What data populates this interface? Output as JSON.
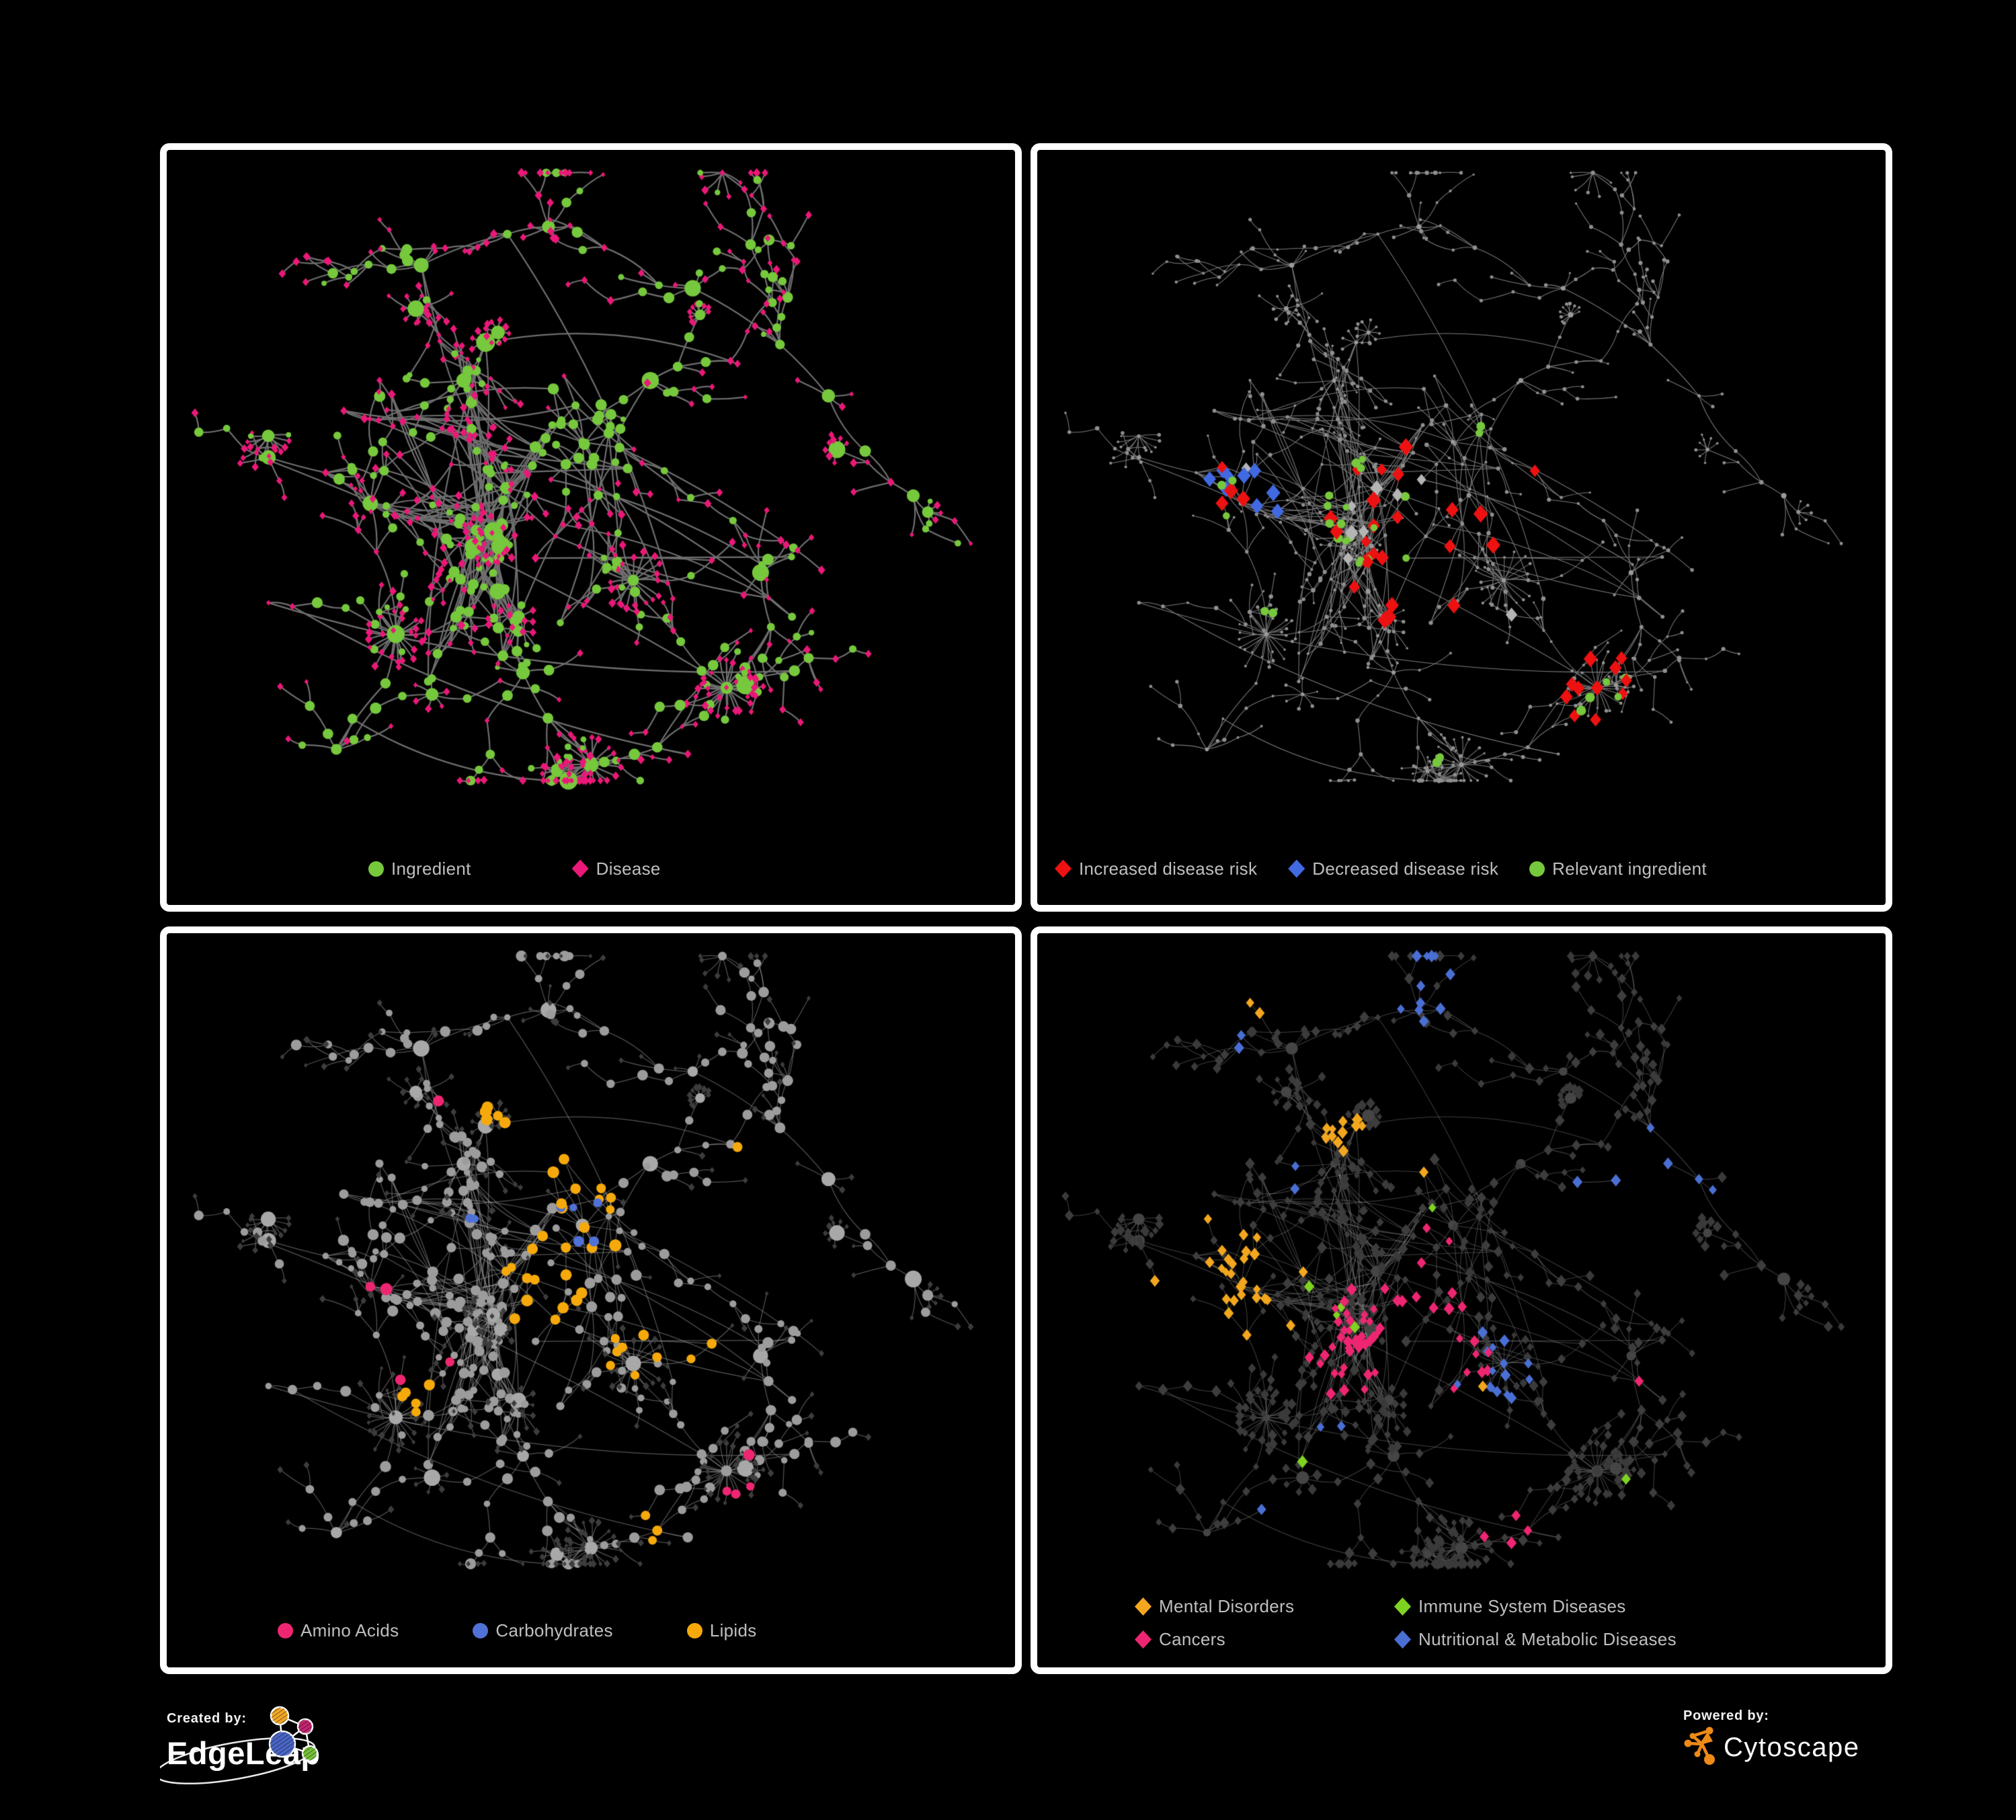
{
  "page": {
    "background": "#000000",
    "panel_border_color": "#ffffff",
    "legend_text_color": "#bfbfbf"
  },
  "footer": {
    "created_by_label": "Created by:",
    "edgeleap_brand": "EdgeLeap",
    "powered_by_label": "Powered by:",
    "cytoscape_brand": "Cytoscape",
    "cytoscape_orange": "#ee8a18",
    "edgeleap_node_colors": {
      "orange": "#f0a727",
      "magenta": "#c2256f",
      "blue": "#4a66c6",
      "green": "#76c23a"
    }
  },
  "network_base": {
    "seed": 7,
    "nodes": 600,
    "fans": 30,
    "cross": 110,
    "longlinks": 20,
    "step": [
      20,
      58
    ],
    "hubs": [
      [
        0.4,
        0.44,
        3.2
      ],
      [
        0.24,
        0.46,
        2.4
      ],
      [
        0.49,
        0.38,
        1.6
      ],
      [
        0.55,
        0.56,
        1.1
      ],
      [
        0.3,
        0.15,
        1.2
      ],
      [
        0.45,
        0.1,
        1.0
      ],
      [
        0.62,
        0.18,
        0.8
      ],
      [
        0.78,
        0.32,
        1.2
      ],
      [
        0.88,
        0.45,
        0.6
      ],
      [
        0.66,
        0.7,
        1.0
      ],
      [
        0.5,
        0.8,
        0.8
      ],
      [
        0.27,
        0.63,
        1.0
      ],
      [
        0.2,
        0.78,
        0.7
      ],
      [
        0.12,
        0.4,
        0.6
      ],
      [
        0.35,
        0.3,
        1.4
      ],
      [
        0.57,
        0.3,
        0.9
      ],
      [
        0.7,
        0.55,
        0.7
      ],
      [
        0.42,
        0.68,
        0.8
      ]
    ],
    "bigfans": [
      [
        0.55,
        0.56
      ],
      [
        0.5,
        0.8
      ],
      [
        0.27,
        0.63
      ],
      [
        0.66,
        0.7
      ]
    ]
  },
  "panels": [
    {
      "name": "ingredient-disease",
      "legend": [
        {
          "label": "Ingredient",
          "shape": "circle",
          "color": "#76c83c"
        },
        {
          "label": "Disease",
          "shape": "diamond",
          "color": "#ea1878"
        }
      ],
      "style": {
        "edge_color": "#6f6f6f",
        "edge_width": 2.2,
        "leaf": [
          [
            "diamond",
            "#ea1878",
            5.2,
            0.86
          ],
          [
            "circle",
            "#76c83c",
            4.8,
            0.14
          ]
        ],
        "mid": [
          [
            "diamond",
            "#ea1878",
            5.4,
            0.52
          ],
          [
            "circle",
            "#76c83c",
            6.4,
            0.48
          ]
        ],
        "hub": [
          [
            "circle",
            "#76c83c",
            10.5,
            1
          ]
        ]
      },
      "classes": [
        {
          "name": "relevant-ingredient-cluster",
          "shape": "circle",
          "color": "#76c83c",
          "size": 7,
          "count": 30,
          "foci": [
            [
              0.49,
              0.38,
              0.05
            ]
          ]
        }
      ]
    },
    {
      "name": "disease-risk",
      "legend": [
        {
          "label": "Increased disease risk",
          "shape": "diamond",
          "color": "#ee1111"
        },
        {
          "label": "Decreased disease risk",
          "shape": "diamond",
          "color": "#4169e1"
        },
        {
          "label": "Relevant ingredient",
          "shape": "circle",
          "color": "#76c83c"
        }
      ],
      "style": {
        "edge_color": "#7b7b7b",
        "edge_width": 1.05,
        "leaf": [
          [
            "circle",
            "#8f8f8f",
            2.1,
            1
          ]
        ],
        "mid": [
          [
            "circle",
            "#8f8f8f",
            2.5,
            1
          ]
        ],
        "hub": [
          [
            "circle",
            "#9a9a9a",
            3.1,
            1
          ]
        ]
      },
      "classes": [
        {
          "name": "increased-disease-risk",
          "shape": "diamond",
          "color": "#ee1111",
          "size": 11,
          "count": 40,
          "foci": [
            [
              0.42,
              0.47,
              0.08
            ],
            [
              0.46,
              0.55,
              0.06
            ],
            [
              0.22,
              0.44,
              0.05
            ],
            [
              0.57,
              0.44,
              0.05
            ],
            [
              0.67,
              0.71,
              0.05
            ],
            [
              0.3,
              0.33,
              0.03
            ],
            [
              0.52,
              0.5,
              0.04
            ],
            [
              0.4,
              0.57,
              0.04
            ]
          ]
        },
        {
          "name": "decreased-disease-risk",
          "shape": "diamond",
          "color": "#4169e1",
          "size": 10.5,
          "count": 9,
          "foci": [
            [
              0.235,
              0.46,
              0.05
            ],
            [
              0.785,
              0.345,
              0.022
            ]
          ]
        },
        {
          "name": "other-association",
          "shape": "diamond",
          "color": "#b5b5b5",
          "size": 10,
          "count": 9,
          "foci": [
            [
              0.43,
              0.5,
              0.07
            ],
            [
              0.21,
              0.41,
              0.04
            ],
            [
              0.25,
              0.55,
              0.03
            ],
            [
              0.56,
              0.59,
              0.02
            ],
            [
              0.45,
              0.4,
              0.03
            ]
          ]
        },
        {
          "name": "relevant-ingredient",
          "shape": "circle",
          "color": "#76c83c",
          "size": 6,
          "count": 32,
          "foci": [
            [
              0.4,
              0.47,
              0.07
            ],
            [
              0.225,
              0.41,
              0.06
            ],
            [
              0.66,
              0.705,
              0.04
            ],
            [
              0.47,
              0.78,
              0.02
            ],
            [
              0.74,
              0.35,
              0.018
            ],
            [
              0.1,
              0.49,
              0.018
            ],
            [
              0.56,
              0.44,
              0.018
            ],
            [
              0.26,
              0.6,
              0.02
            ],
            [
              0.49,
              0.38,
              0.04
            ]
          ]
        }
      ]
    },
    {
      "name": "macronutrients",
      "legend": [
        {
          "label": "Amino Acids",
          "shape": "circle",
          "color": "#ee2672"
        },
        {
          "label": "Carbohydrates",
          "shape": "circle",
          "color": "#5071d6"
        },
        {
          "label": "Lipids",
          "shape": "circle",
          "color": "#f6a90b"
        }
      ],
      "style": {
        "edge_color": "rgba(165,165,165,0.5)",
        "edge_width": 1.25,
        "leaf": [
          [
            "diamond",
            "#3d3d3d",
            4.5,
            1
          ]
        ],
        "mid": [
          [
            "circle",
            "#9c9c9c",
            6.2,
            1
          ]
        ],
        "hub": [
          [
            "circle",
            "#a8a8a8",
            9.5,
            1
          ]
        ]
      },
      "classes": [
        {
          "name": "lipids",
          "shape": "circle",
          "color": "#f6a90b",
          "size": 7.5,
          "count": 64,
          "foci": [
            [
              0.49,
              0.38,
              0.055
            ],
            [
              0.44,
              0.46,
              0.05
            ],
            [
              0.55,
              0.55,
              0.03
            ],
            [
              0.63,
              0.54,
              0.04
            ],
            [
              0.42,
              0.2,
              0.06
            ],
            [
              0.47,
              0.28,
              0.04
            ],
            [
              0.66,
              0.29,
              0.02
            ],
            [
              0.83,
              0.28,
              0.02
            ],
            [
              0.57,
              0.77,
              0.02
            ],
            [
              0.3,
              0.6,
              0.025
            ],
            [
              0.41,
              0.06,
              0.018
            ],
            [
              0.25,
              0.06,
              0.018
            ],
            [
              0.52,
              0.63,
              0.02
            ]
          ]
        },
        {
          "name": "amino-acids",
          "shape": "circle",
          "color": "#ee2672",
          "size": 7.5,
          "count": 24,
          "foci": [
            [
              0.63,
              0.025,
              0.018
            ],
            [
              0.2,
              0.16,
              0.03
            ],
            [
              0.3,
              0.23,
              0.025
            ],
            [
              0.24,
              0.38,
              0.02
            ],
            [
              0.12,
              0.48,
              0.018
            ],
            [
              0.24,
              0.46,
              0.02
            ],
            [
              0.27,
              0.6,
              0.02
            ],
            [
              0.25,
              0.74,
              0.025
            ],
            [
              0.34,
              0.57,
              0.02
            ],
            [
              0.46,
              0.65,
              0.02
            ],
            [
              0.66,
              0.59,
              0.025
            ],
            [
              0.7,
              0.66,
              0.03
            ],
            [
              0.67,
              0.71,
              0.025
            ],
            [
              0.76,
              0.25,
              0.018
            ],
            [
              0.92,
              0.25,
              0.018
            ],
            [
              0.31,
              0.75,
              0.02
            ],
            [
              0.44,
              0.75,
              0.018
            ]
          ]
        },
        {
          "name": "carbohydrates",
          "shape": "circle",
          "color": "#5071d6",
          "size": 7,
          "count": 13,
          "foci": [
            [
              0.49,
              0.38,
              0.04
            ],
            [
              0.28,
              0.04,
              0.018
            ],
            [
              0.065,
              0.22,
              0.018
            ],
            [
              0.4,
              0.27,
              0.018
            ],
            [
              0.37,
              0.38,
              0.018
            ],
            [
              0.66,
              0.54,
              0.018
            ],
            [
              0.44,
              0.4,
              0.02
            ]
          ]
        }
      ]
    },
    {
      "name": "disease-categories",
      "legend": [
        {
          "label": "Mental Disorders",
          "shape": "diamond",
          "color": "#f2a71f"
        },
        {
          "label": "Immune System Diseases",
          "shape": "diamond",
          "color": "#7ed321"
        },
        {
          "label": "Cancers",
          "shape": "diamond",
          "color": "#ee2672"
        },
        {
          "label": "Nutritional & Metabolic Diseases",
          "shape": "diamond",
          "color": "#4a6fd4"
        }
      ],
      "style": {
        "edge_color": "rgba(150,150,150,0.42)",
        "edge_width": 1.05,
        "leaf": [
          [
            "diamond",
            "#3a3a3a",
            6.4,
            1
          ]
        ],
        "mid": [
          [
            "diamond",
            "#3d3d3d",
            6.8,
            1
          ]
        ],
        "hub": [
          [
            "circle",
            "#454545",
            7.2,
            1
          ]
        ]
      },
      "classes": [
        {
          "name": "mental-disorders",
          "shape": "diamond",
          "color": "#f2a71f",
          "size": 8,
          "count": 95,
          "foci": [
            [
              0.21,
              0.45,
              0.075
            ],
            [
              0.255,
              0.5,
              0.05
            ],
            [
              0.17,
              0.52,
              0.04
            ],
            [
              0.3,
              0.42,
              0.035
            ],
            [
              0.26,
              0.1,
              0.02
            ],
            [
              0.36,
              0.26,
              0.025
            ],
            [
              0.13,
              0.67,
              0.02
            ],
            [
              0.22,
              0.69,
              0.02
            ],
            [
              0.3,
              0.75,
              0.018
            ],
            [
              0.51,
              0.59,
              0.018
            ],
            [
              0.58,
              0.22,
              0.018
            ],
            [
              0.445,
              0.31,
              0.02
            ]
          ]
        },
        {
          "name": "cancers",
          "shape": "diamond",
          "color": "#ee2672",
          "size": 8,
          "count": 62,
          "foci": [
            [
              0.4,
              0.52,
              0.06
            ],
            [
              0.46,
              0.48,
              0.05
            ],
            [
              0.36,
              0.56,
              0.04
            ],
            [
              0.5,
              0.56,
              0.035
            ],
            [
              0.84,
              0.25,
              0.035
            ],
            [
              0.57,
              0.26,
              0.03
            ],
            [
              0.36,
              0.25,
              0.02
            ],
            [
              0.22,
              0.66,
              0.025
            ],
            [
              0.55,
              0.77,
              0.03
            ],
            [
              0.72,
              0.6,
              0.02
            ],
            [
              0.46,
              0.41,
              0.03
            ],
            [
              0.91,
              0.06,
              0.018
            ]
          ]
        },
        {
          "name": "nutritional-metabolic-diseases",
          "shape": "diamond",
          "color": "#4a6fd4",
          "size": 8,
          "count": 75,
          "foci": [
            [
              0.52,
              0.55,
              0.045
            ],
            [
              0.56,
              0.58,
              0.03
            ],
            [
              0.72,
              0.3,
              0.05
            ],
            [
              0.66,
              0.35,
              0.04
            ],
            [
              0.78,
              0.345,
              0.03
            ],
            [
              0.45,
              0.07,
              0.045
            ],
            [
              0.58,
              0.07,
              0.03
            ],
            [
              0.23,
              0.12,
              0.04
            ],
            [
              0.12,
              0.2,
              0.025
            ],
            [
              0.28,
              0.78,
              0.035
            ],
            [
              0.35,
              0.66,
              0.025
            ],
            [
              0.44,
              0.73,
              0.02
            ],
            [
              0.63,
              0.51,
              0.02
            ],
            [
              0.3,
              0.32,
              0.025
            ],
            [
              0.88,
              0.78,
              0.03
            ],
            [
              0.68,
              0.82,
              0.025
            ],
            [
              0.77,
              0.5,
              0.02
            ]
          ]
        },
        {
          "name": "immune-system-diseases",
          "shape": "diamond",
          "color": "#7ed321",
          "size": 8,
          "count": 12,
          "foci": [
            [
              0.38,
              0.24,
              0.02
            ],
            [
              0.47,
              0.24,
              0.02
            ],
            [
              0.26,
              0.31,
              0.02
            ],
            [
              0.3,
              0.44,
              0.02
            ],
            [
              0.335,
              0.46,
              0.02
            ],
            [
              0.37,
              0.5,
              0.02
            ],
            [
              0.53,
              0.52,
              0.02
            ],
            [
              0.69,
              0.72,
              0.02
            ],
            [
              0.64,
              0.75,
              0.02
            ],
            [
              0.3,
              0.68,
              0.02
            ],
            [
              0.455,
              0.345,
              0.02
            ],
            [
              0.52,
              0.59,
              0.02
            ]
          ]
        }
      ]
    }
  ]
}
